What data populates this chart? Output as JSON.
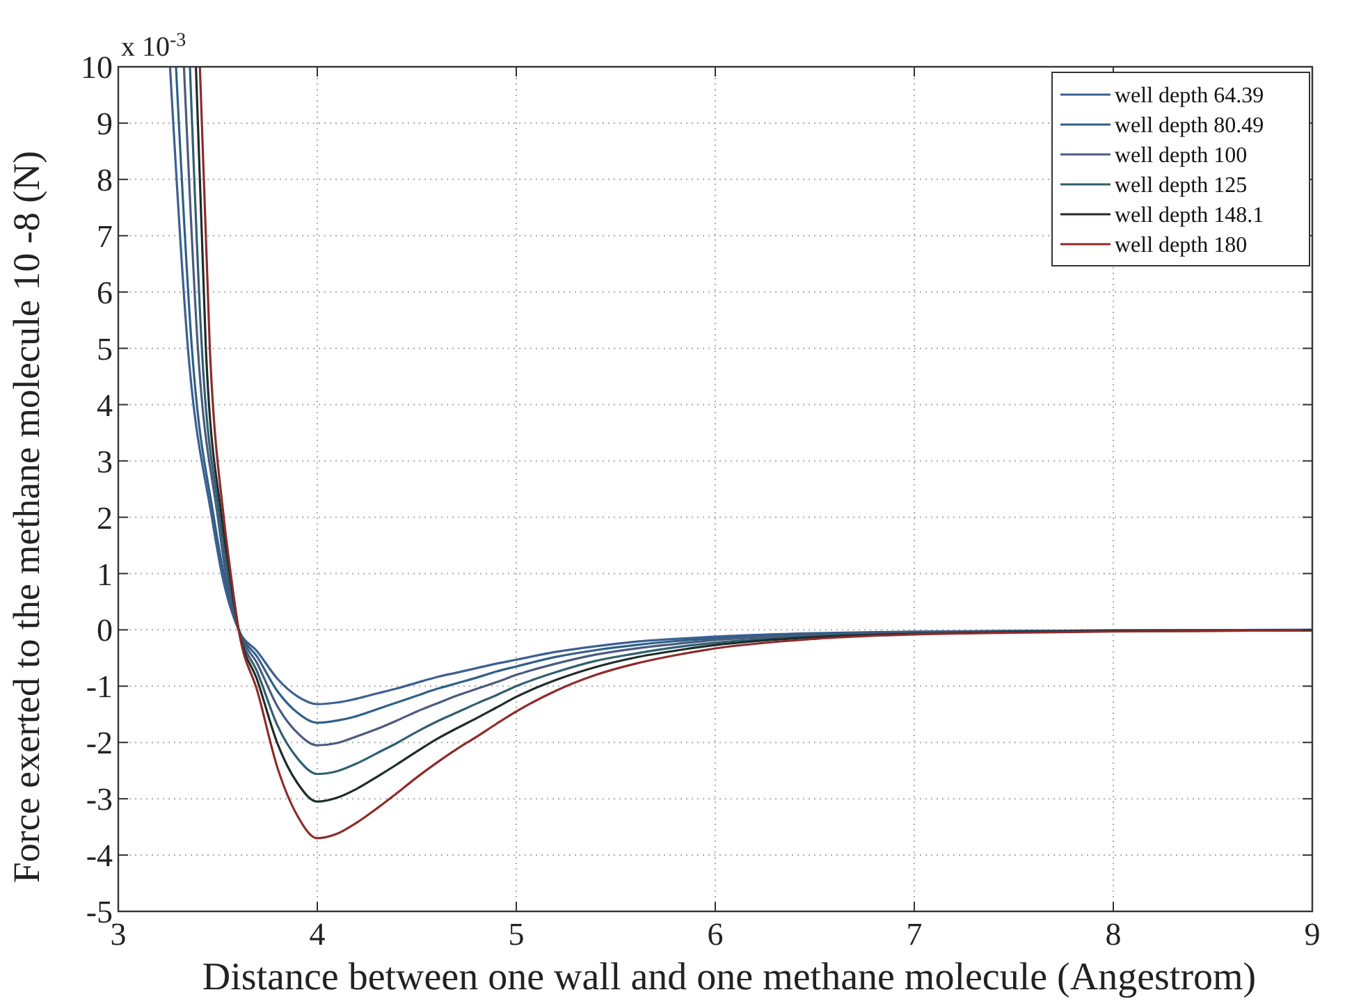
{
  "chart_data": {
    "type": "line",
    "xlabel": "Distance between one wall and one methane molecule (Angestrom)",
    "ylabel": "Force exerted to the methane molecule 10 -8 (N)",
    "annotations": [
      "x 10$^{-3}$"
    ],
    "xlim": [
      3,
      9
    ],
    "ylim": [
      -5,
      10
    ],
    "xticks": [
      3,
      4,
      5,
      6,
      7,
      8,
      9
    ],
    "yticks": [
      -5,
      -4,
      -3,
      -2,
      -1,
      0,
      1,
      2,
      3,
      4,
      5,
      6,
      7,
      8,
      9,
      10
    ],
    "grid": true,
    "legend": "top right",
    "line_style": "solid",
    "series": [
      {
        "name": "well depth 64.39",
        "color": "#3d5f93",
        "x": [
          3.26,
          3.35,
          3.47,
          3.52,
          3.605,
          3.7,
          3.8,
          3.9,
          4.0,
          4.1,
          4.2,
          4.3,
          4.4,
          4.5,
          4.6,
          4.7,
          4.8,
          4.9,
          5.0,
          5.2,
          5.4,
          5.6,
          5.8,
          6.0,
          6.5,
          7.0,
          7.5,
          8.0,
          9.0
        ],
        "values": [
          10,
          5,
          2,
          1,
          0,
          -0.39,
          -0.87,
          -1.18,
          -1.32,
          -1.29,
          -1.22,
          -1.13,
          -1.04,
          -0.94,
          -0.84,
          -0.76,
          -0.68,
          -0.6,
          -0.53,
          -0.39,
          -0.29,
          -0.21,
          -0.16,
          -0.12,
          -0.06,
          -0.03,
          -0.02,
          -0.01,
          0
        ]
      },
      {
        "name": "well depth 80.49",
        "color": "#2e6088",
        "x": [
          3.29,
          3.37,
          3.48,
          3.53,
          3.605,
          3.7,
          3.8,
          3.9,
          4.0,
          4.1,
          4.2,
          4.3,
          4.4,
          4.5,
          4.6,
          4.7,
          4.8,
          4.9,
          5.0,
          5.2,
          5.4,
          5.6,
          5.8,
          6.0,
          6.5,
          7.0,
          7.5,
          8.0,
          9.0
        ],
        "values": [
          10,
          5,
          2,
          1,
          0,
          -0.49,
          -1.09,
          -1.47,
          -1.65,
          -1.61,
          -1.53,
          -1.41,
          -1.29,
          -1.17,
          -1.05,
          -0.95,
          -0.85,
          -0.74,
          -0.65,
          -0.48,
          -0.36,
          -0.27,
          -0.2,
          -0.15,
          -0.07,
          -0.04,
          -0.02,
          -0.01,
          0
        ]
      },
      {
        "name": "well depth 100",
        "color": "#4b5a7e",
        "x": [
          3.33,
          3.4,
          3.5,
          3.54,
          3.605,
          3.7,
          3.8,
          3.9,
          4.0,
          4.1,
          4.2,
          4.3,
          4.4,
          4.5,
          4.6,
          4.7,
          4.8,
          4.9,
          5.0,
          5.2,
          5.4,
          5.6,
          5.8,
          6.0,
          6.5,
          7.0,
          7.5,
          8.0,
          9.0
        ],
        "values": [
          10,
          5,
          2,
          1,
          0,
          -0.61,
          -1.36,
          -1.83,
          -2.05,
          -2.01,
          -1.89,
          -1.76,
          -1.61,
          -1.45,
          -1.31,
          -1.17,
          -1.05,
          -0.93,
          -0.8,
          -0.6,
          -0.44,
          -0.33,
          -0.25,
          -0.18,
          -0.09,
          -0.04,
          -0.03,
          -0.02,
          -0.01
        ]
      },
      {
        "name": "well depth 125",
        "color": "#2f5f70",
        "x": [
          3.36,
          3.42,
          3.51,
          3.55,
          3.605,
          3.7,
          3.8,
          3.9,
          4.0,
          4.1,
          4.2,
          4.3,
          4.4,
          4.5,
          4.6,
          4.7,
          4.8,
          4.9,
          5.0,
          5.2,
          5.4,
          5.6,
          5.8,
          6.0,
          6.5,
          7.0,
          7.5,
          8.0,
          9.0
        ],
        "values": [
          10,
          5,
          2,
          1,
          0,
          -0.76,
          -1.7,
          -2.28,
          -2.56,
          -2.51,
          -2.37,
          -2.19,
          -2.01,
          -1.81,
          -1.63,
          -1.47,
          -1.31,
          -1.16,
          -1.0,
          -0.75,
          -0.55,
          -0.42,
          -0.31,
          -0.23,
          -0.11,
          -0.06,
          -0.03,
          -0.02,
          -0.01
        ]
      },
      {
        "name": "well depth 148.1",
        "color": "#1e2b2b",
        "x": [
          3.39,
          3.44,
          3.52,
          3.56,
          3.605,
          3.7,
          3.8,
          3.9,
          4.0,
          4.1,
          4.2,
          4.3,
          4.4,
          4.5,
          4.6,
          4.7,
          4.8,
          4.9,
          5.0,
          5.2,
          5.4,
          5.6,
          5.8,
          6.0,
          6.5,
          7.0,
          7.5,
          8.0,
          9.0
        ],
        "values": [
          10,
          5,
          2,
          1,
          0,
          -0.91,
          -2.02,
          -2.72,
          -3.05,
          -2.98,
          -2.82,
          -2.61,
          -2.39,
          -2.16,
          -1.94,
          -1.75,
          -1.57,
          -1.38,
          -1.19,
          -0.89,
          -0.66,
          -0.49,
          -0.37,
          -0.27,
          -0.13,
          -0.07,
          -0.04,
          -0.02,
          -0.01
        ]
      },
      {
        "name": "well depth 180",
        "color": "#8e2b2b",
        "x": [
          3.41,
          3.46,
          3.53,
          3.565,
          3.605,
          3.7,
          3.8,
          3.9,
          4.0,
          4.1,
          4.2,
          4.3,
          4.4,
          4.5,
          4.6,
          4.7,
          4.8,
          4.9,
          5.0,
          5.2,
          5.4,
          5.6,
          5.8,
          6.0,
          6.5,
          7.0,
          7.5,
          8.0,
          9.0
        ],
        "values": [
          10,
          5,
          2,
          1,
          0,
          -1.1,
          -2.45,
          -3.3,
          -3.7,
          -3.62,
          -3.42,
          -3.17,
          -2.9,
          -2.62,
          -2.36,
          -2.12,
          -1.9,
          -1.67,
          -1.45,
          -1.08,
          -0.8,
          -0.6,
          -0.45,
          -0.33,
          -0.16,
          -0.08,
          -0.05,
          -0.03,
          -0.01
        ]
      }
    ]
  }
}
